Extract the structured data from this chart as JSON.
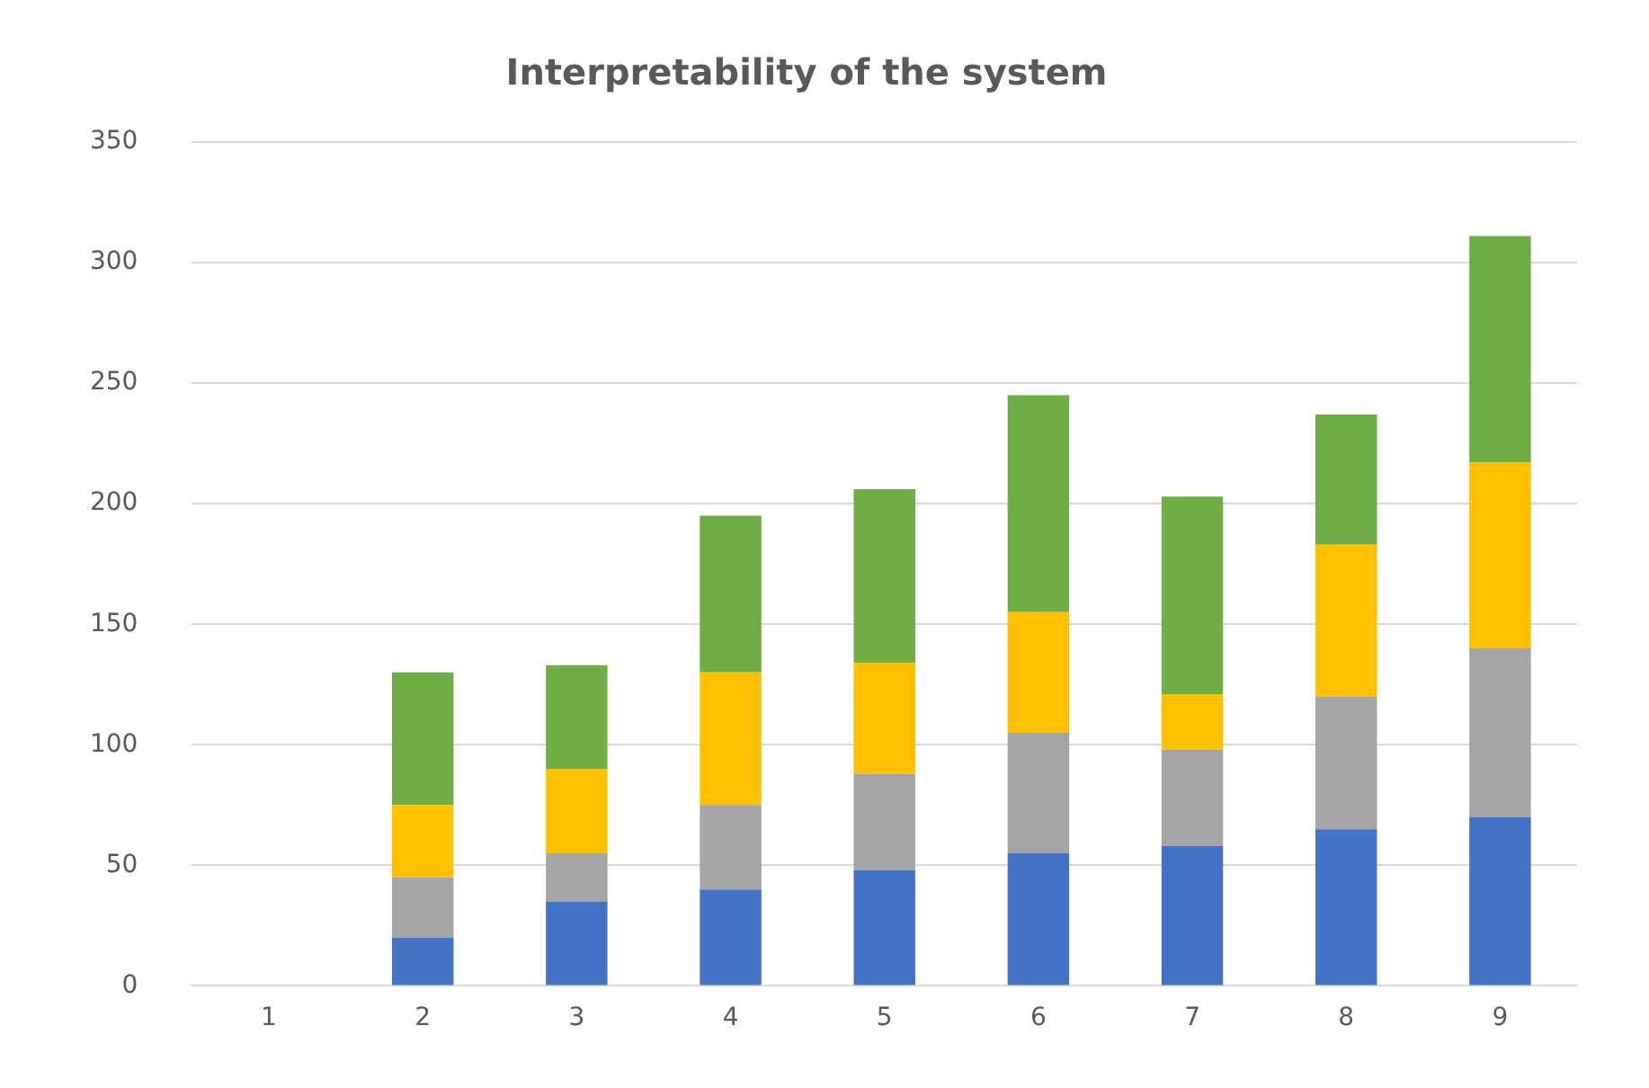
{
  "chart_data": {
    "type": "bar",
    "title": "Interpretability of the system",
    "stacked": true,
    "categories": [
      "1",
      "2",
      "3",
      "4",
      "5",
      "6",
      "7",
      "8",
      "9"
    ],
    "series": [
      {
        "color": "#4472c4",
        "values": [
          null,
          20,
          35,
          40,
          48,
          55,
          58,
          65,
          70
        ]
      },
      {
        "color": "#a5a5a5",
        "values": [
          null,
          25,
          20,
          35,
          40,
          50,
          40,
          55,
          70
        ]
      },
      {
        "color": "#ffc000",
        "values": [
          null,
          30,
          35,
          55,
          46,
          50,
          23,
          63,
          77
        ]
      },
      {
        "color": "#70ad47",
        "values": [
          null,
          55,
          43,
          65,
          72,
          90,
          82,
          54,
          94
        ]
      }
    ],
    "ylim": [
      0,
      350
    ],
    "yticks": [
      0,
      50,
      100,
      150,
      200,
      250,
      300,
      350
    ],
    "grid": "y",
    "legend": false
  }
}
